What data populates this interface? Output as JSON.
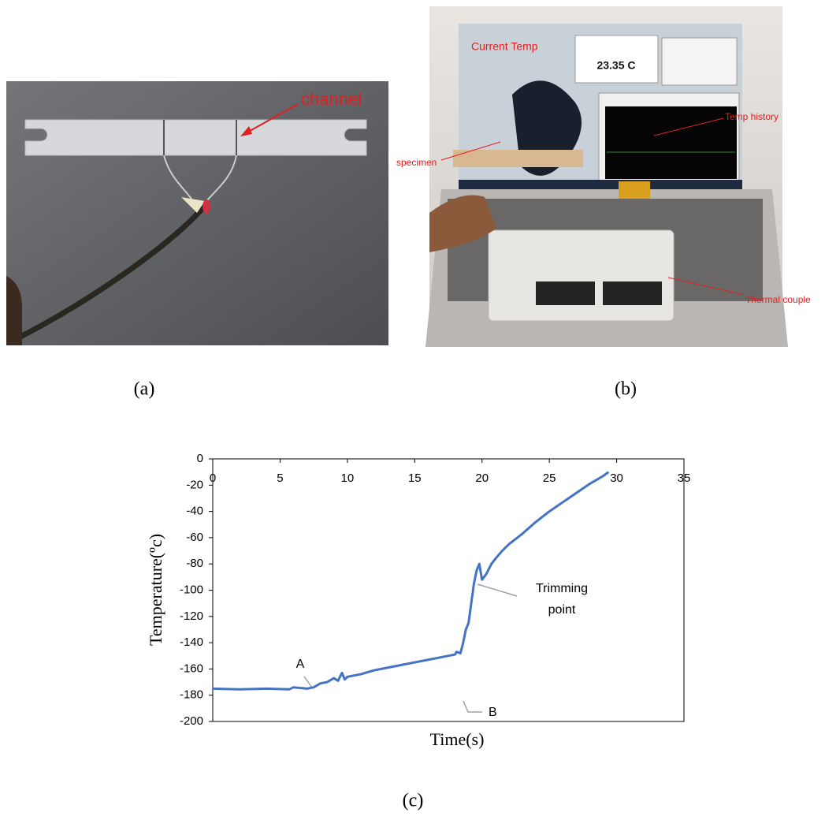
{
  "photo_a": {
    "annotation": "channel"
  },
  "photo_b": {
    "annotations": {
      "current_temp": "Current Temp",
      "reading": "23.35 C",
      "temp_history": "Temp history",
      "specimen": "specimen",
      "thermal_couple": "Thermal couple"
    }
  },
  "panel_labels": [
    "(a)",
    "(b)",
    "(c)"
  ],
  "chart_data": {
    "type": "line",
    "xlabel": "Time(s)",
    "ylabel": "Temperature(ºc)",
    "color": "#4472c4",
    "x": [
      0,
      2,
      4,
      5.7,
      6,
      7,
      7.5,
      8,
      8.5,
      9,
      9.3,
      9.6,
      9.8,
      10,
      11,
      12,
      13,
      14,
      15,
      16,
      17,
      18,
      18.1,
      18.4,
      18.6,
      18.8,
      19,
      19.2,
      19.4,
      19.6,
      19.8,
      20,
      20.3,
      20.7,
      21,
      21.5,
      22,
      23,
      24,
      25,
      26,
      27,
      28,
      29,
      29.4
    ],
    "values": [
      -175,
      -175.5,
      -175,
      -175.5,
      -174,
      -175,
      -174,
      -171,
      -170,
      -167,
      -169,
      -163,
      -168,
      -166,
      -164,
      -161,
      -159,
      -157,
      -155,
      -153,
      -151,
      -149,
      -147,
      -148,
      -140,
      -130,
      -125,
      -110,
      -95,
      -85,
      -80,
      -92,
      -88,
      -80,
      -76,
      -70,
      -65,
      -57,
      -48,
      -40,
      -33,
      -26,
      -19,
      -13,
      -10
    ],
    "xlim": [
      0,
      35
    ],
    "xticks": [
      0,
      5,
      10,
      15,
      20,
      25,
      30,
      35
    ],
    "ylim": [
      -200,
      0
    ],
    "yticks": [
      0,
      -20,
      -40,
      -60,
      -80,
      -100,
      -120,
      -140,
      -160,
      -180,
      -200
    ],
    "grid": false,
    "annotations": [
      "A",
      "B",
      [
        "Trimming",
        "point"
      ]
    ]
  }
}
